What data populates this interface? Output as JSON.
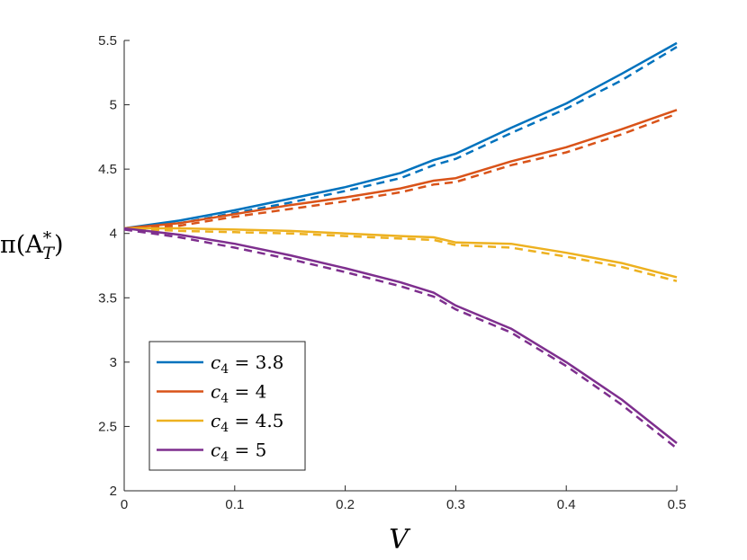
{
  "chart_data": {
    "type": "line",
    "xlabel": "V",
    "ylabel": "π(A*_T)",
    "ylabel_parts": {
      "base": "π(A",
      "sup": "*",
      "sub": "T",
      "close": ")"
    },
    "xlim": [
      0,
      0.5
    ],
    "ylim": [
      2,
      5.5
    ],
    "xticks": [
      0,
      0.1,
      0.2,
      0.3,
      0.4,
      0.5
    ],
    "xtick_labels": [
      "0",
      "0.1",
      "0.2",
      "0.3",
      "0.4",
      "0.5"
    ],
    "yticks": [
      2,
      2.5,
      3,
      3.5,
      4,
      4.5,
      5,
      5.5
    ],
    "ytick_labels": [
      "2",
      "2.5",
      "3",
      "3.5",
      "4",
      "4.5",
      "5",
      "5.5"
    ],
    "grid": false,
    "legend_position": "bottom-left",
    "x": [
      0,
      0.05,
      0.1,
      0.15,
      0.2,
      0.25,
      0.28,
      0.3,
      0.35,
      0.4,
      0.45,
      0.5
    ],
    "series": [
      {
        "name": "c4 = 3.8",
        "legend": {
          "var": "c",
          "sub": "4",
          "value": " = 3.8"
        },
        "color": "#0072BD",
        "solid": [
          4.04,
          4.1,
          4.18,
          4.27,
          4.36,
          4.47,
          4.57,
          4.62,
          4.82,
          5.01,
          5.24,
          5.48
        ],
        "dashed": [
          4.04,
          4.08,
          4.16,
          4.24,
          4.33,
          4.43,
          4.53,
          4.58,
          4.78,
          4.97,
          5.19,
          5.45
        ]
      },
      {
        "name": "c4 = 4",
        "legend": {
          "var": "c",
          "sub": "4",
          "value": " = 4"
        },
        "color": "#D95319",
        "solid": [
          4.04,
          4.08,
          4.15,
          4.22,
          4.28,
          4.35,
          4.41,
          4.43,
          4.56,
          4.67,
          4.81,
          4.96
        ],
        "dashed": [
          4.04,
          4.06,
          4.13,
          4.19,
          4.25,
          4.32,
          4.38,
          4.4,
          4.53,
          4.63,
          4.77,
          4.93
        ]
      },
      {
        "name": "c4 = 4.5",
        "legend": {
          "var": "c",
          "sub": "4",
          "value": " = 4.5"
        },
        "color": "#EDB120",
        "solid": [
          4.04,
          4.04,
          4.03,
          4.02,
          4.0,
          3.98,
          3.97,
          3.93,
          3.92,
          3.85,
          3.77,
          3.66
        ],
        "dashed": [
          4.04,
          4.02,
          4.01,
          4.0,
          3.98,
          3.96,
          3.95,
          3.91,
          3.89,
          3.82,
          3.74,
          3.63
        ]
      },
      {
        "name": "c4 = 5",
        "legend": {
          "var": "c",
          "sub": "4",
          "value": " = 5"
        },
        "color": "#7E2F8E",
        "solid": [
          4.04,
          3.99,
          3.92,
          3.83,
          3.73,
          3.62,
          3.54,
          3.44,
          3.26,
          3.0,
          2.71,
          2.37
        ],
        "dashed": [
          4.03,
          3.97,
          3.89,
          3.8,
          3.7,
          3.59,
          3.51,
          3.41,
          3.23,
          2.97,
          2.67,
          2.33
        ]
      }
    ]
  }
}
